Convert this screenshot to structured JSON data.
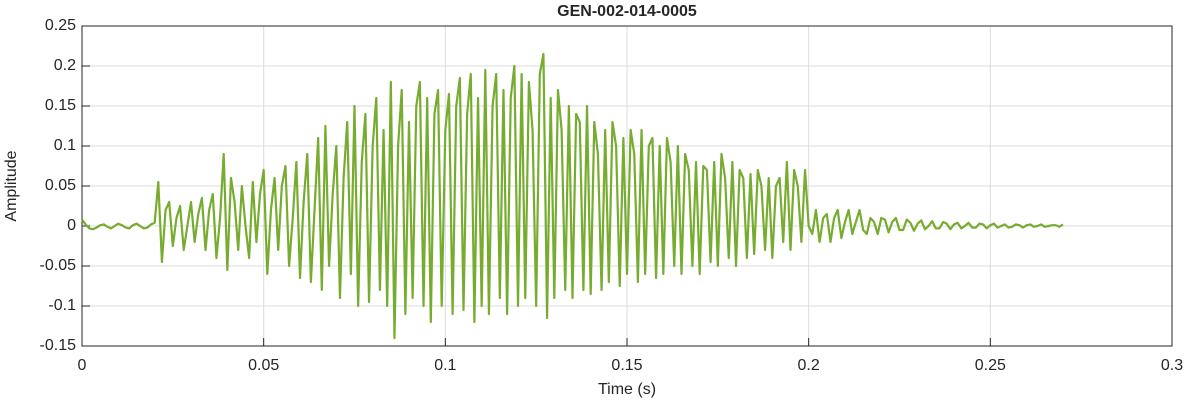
{
  "chart_data": {
    "type": "line",
    "title": "GEN-002-014-0005",
    "xlabel": "Time (s)",
    "ylabel": "Amplitude",
    "color": "#77ac30",
    "grid": true,
    "xlim": [
      0,
      0.3
    ],
    "xticks": [
      0,
      0.05,
      0.1,
      0.15,
      0.2,
      0.25,
      0.3
    ],
    "ylim": [
      -0.15,
      0.25
    ],
    "yticks": [
      -0.15,
      -0.1,
      -0.05,
      0,
      0.05,
      0.1,
      0.15,
      0.2,
      0.25
    ],
    "x": [
      0,
      0.001,
      0.002,
      0.003,
      0.004,
      0.005,
      0.006,
      0.007,
      0.008,
      0.009,
      0.01,
      0.011,
      0.012,
      0.013,
      0.014,
      0.015,
      0.016,
      0.017,
      0.018,
      0.019,
      0.02,
      0.021,
      0.022,
      0.023,
      0.024,
      0.025,
      0.026,
      0.027,
      0.028,
      0.029,
      0.03,
      0.031,
      0.032,
      0.033,
      0.034,
      0.035,
      0.036,
      0.037,
      0.038,
      0.039,
      0.04,
      0.041,
      0.042,
      0.043,
      0.044,
      0.045,
      0.046,
      0.047,
      0.048,
      0.049,
      0.05,
      0.051,
      0.052,
      0.053,
      0.054,
      0.055,
      0.056,
      0.057,
      0.058,
      0.059,
      0.06,
      0.061,
      0.062,
      0.063,
      0.064,
      0.065,
      0.066,
      0.067,
      0.068,
      0.069,
      0.07,
      0.071,
      0.072,
      0.073,
      0.074,
      0.075,
      0.076,
      0.077,
      0.078,
      0.079,
      0.08,
      0.081,
      0.082,
      0.083,
      0.084,
      0.085,
      0.086,
      0.087,
      0.088,
      0.089,
      0.09,
      0.091,
      0.092,
      0.093,
      0.094,
      0.095,
      0.096,
      0.097,
      0.098,
      0.099,
      0.1,
      0.101,
      0.102,
      0.103,
      0.104,
      0.105,
      0.106,
      0.107,
      0.108,
      0.109,
      0.11,
      0.111,
      0.112,
      0.113,
      0.114,
      0.115,
      0.116,
      0.117,
      0.118,
      0.119,
      0.12,
      0.121,
      0.122,
      0.123,
      0.124,
      0.125,
      0.126,
      0.127,
      0.128,
      0.129,
      0.13,
      0.131,
      0.132,
      0.133,
      0.134,
      0.135,
      0.136,
      0.137,
      0.138,
      0.139,
      0.14,
      0.141,
      0.142,
      0.143,
      0.144,
      0.145,
      0.146,
      0.147,
      0.148,
      0.149,
      0.15,
      0.151,
      0.152,
      0.153,
      0.154,
      0.155,
      0.156,
      0.157,
      0.158,
      0.159,
      0.16,
      0.161,
      0.162,
      0.163,
      0.164,
      0.165,
      0.166,
      0.167,
      0.168,
      0.169,
      0.17,
      0.171,
      0.172,
      0.173,
      0.174,
      0.175,
      0.176,
      0.177,
      0.178,
      0.179,
      0.18,
      0.181,
      0.182,
      0.183,
      0.184,
      0.185,
      0.186,
      0.187,
      0.188,
      0.189,
      0.19,
      0.191,
      0.192,
      0.193,
      0.194,
      0.195,
      0.196,
      0.197,
      0.198,
      0.199,
      0.2,
      0.201,
      0.202,
      0.203,
      0.204,
      0.205,
      0.206,
      0.207,
      0.208,
      0.209,
      0.21,
      0.211,
      0.212,
      0.213,
      0.214,
      0.215,
      0.216,
      0.217,
      0.218,
      0.219,
      0.22,
      0.221,
      0.222,
      0.223,
      0.224,
      0.225,
      0.226,
      0.227,
      0.228,
      0.229,
      0.23,
      0.231,
      0.232,
      0.233,
      0.234,
      0.235,
      0.236,
      0.237,
      0.238,
      0.239,
      0.24,
      0.241,
      0.242,
      0.243,
      0.244,
      0.245,
      0.246,
      0.247,
      0.248,
      0.249,
      0.25,
      0.251,
      0.252,
      0.253,
      0.254,
      0.255,
      0.256,
      0.257,
      0.258,
      0.259,
      0.26,
      0.261,
      0.262,
      0.263,
      0.264,
      0.265,
      0.266,
      0.267,
      0.268,
      0.269,
      0.27
    ],
    "values": [
      0.008,
      0.002,
      -0.003,
      -0.004,
      -0.002,
      0.001,
      0.002,
      -0.001,
      -0.003,
      0.0,
      0.003,
      0.001,
      -0.002,
      -0.003,
      0.001,
      0.003,
      0.0,
      -0.003,
      -0.002,
      0.002,
      0.004,
      0.055,
      -0.045,
      0.02,
      0.03,
      -0.025,
      0.01,
      0.025,
      -0.03,
      0.0,
      0.03,
      -0.02,
      0.015,
      0.035,
      -0.03,
      0.02,
      0.04,
      -0.04,
      0.01,
      0.09,
      -0.055,
      0.06,
      0.03,
      -0.03,
      0.05,
      0.0,
      -0.04,
      0.055,
      -0.02,
      0.04,
      0.07,
      -0.06,
      0.02,
      0.06,
      -0.03,
      0.05,
      0.075,
      -0.05,
      0.01,
      0.08,
      -0.065,
      0.03,
      0.09,
      -0.07,
      0.02,
      0.11,
      -0.08,
      0.125,
      -0.05,
      0.04,
      0.1,
      -0.09,
      0.06,
      0.13,
      -0.06,
      0.15,
      -0.1,
      0.08,
      0.14,
      -0.095,
      0.1,
      0.16,
      -0.08,
      0.12,
      -0.1,
      0.18,
      -0.14,
      0.1,
      0.17,
      -0.11,
      0.13,
      -0.09,
      0.15,
      0.18,
      -0.1,
      0.16,
      -0.12,
      0.14,
      0.17,
      -0.1,
      0.12,
      0.165,
      -0.11,
      0.15,
      0.185,
      -0.105,
      0.14,
      0.19,
      -0.12,
      0.16,
      -0.1,
      0.195,
      -0.11,
      0.15,
      0.19,
      -0.09,
      0.17,
      -0.11,
      0.16,
      0.2,
      -0.1,
      0.19,
      -0.09,
      0.18,
      0.12,
      -0.1,
      0.19,
      0.215,
      -0.115,
      0.16,
      -0.09,
      0.17,
      0.12,
      -0.08,
      0.15,
      -0.09,
      0.14,
      0.13,
      -0.08,
      0.15,
      -0.085,
      0.13,
      0.09,
      -0.08,
      0.12,
      -0.07,
      0.13,
      0.1,
      -0.075,
      0.11,
      -0.06,
      0.12,
      0.09,
      -0.07,
      0.12,
      -0.06,
      0.1,
      0.11,
      -0.065,
      0.1,
      -0.06,
      0.11,
      0.08,
      -0.05,
      0.1,
      -0.06,
      0.09,
      0.07,
      -0.05,
      0.08,
      -0.06,
      0.075,
      0.07,
      -0.045,
      0.08,
      -0.05,
      0.09,
      0.06,
      -0.04,
      0.08,
      -0.05,
      0.07,
      0.06,
      -0.04,
      0.065,
      -0.035,
      0.07,
      0.05,
      -0.03,
      0.06,
      -0.04,
      0.05,
      0.06,
      -0.02,
      0.08,
      -0.03,
      0.07,
      0.05,
      -0.02,
      0.07,
      0.0,
      -0.01,
      0.02,
      -0.02,
      0.01,
      0.015,
      -0.02,
      0.01,
      0.02,
      -0.015,
      0.005,
      0.02,
      -0.01,
      0.005,
      0.02,
      -0.005,
      -0.01,
      0.01,
      0.005,
      -0.01,
      0.01,
      0.008,
      -0.008,
      0.005,
      0.01,
      -0.005,
      -0.005,
      0.008,
      0.004,
      -0.006,
      0.003,
      0.007,
      -0.004,
      0.0,
      0.006,
      -0.003,
      -0.003,
      0.005,
      0.003,
      -0.004,
      0.002,
      0.004,
      -0.003,
      0.0,
      0.004,
      -0.002,
      -0.002,
      0.003,
      0.002,
      -0.003,
      0.001,
      0.003,
      -0.002,
      0.0,
      0.002,
      -0.002,
      -0.001,
      0.002,
      0.001,
      -0.002,
      0.001,
      0.002,
      -0.001,
      0.0,
      0.002,
      -0.001,
      0.0,
      0.001,
      0.001,
      -0.001,
      0.002
    ]
  }
}
